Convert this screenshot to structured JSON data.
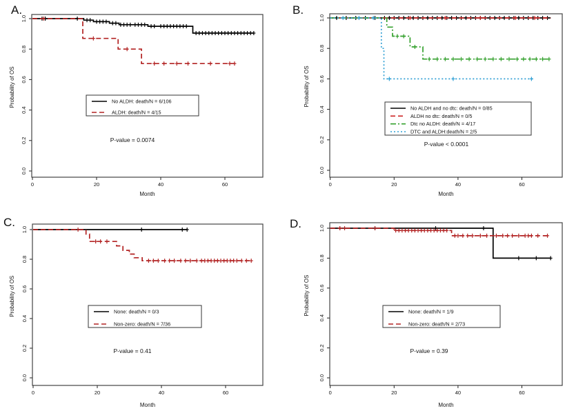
{
  "figure": {
    "description": "Kaplan-Meier overall survival curves, four panels",
    "panel_labels": [
      "A.",
      "B.",
      "C.",
      "D."
    ]
  },
  "chart_data": [
    {
      "type": "line",
      "panel_label": "A.",
      "xlabel": "Month",
      "ylabel": "Probability of OS",
      "xlim": [
        0,
        72
      ],
      "ylim": [
        0,
        1
      ],
      "x_ticks": [
        0,
        20,
        40,
        60
      ],
      "x_tick_labels": [
        "0",
        "20",
        "40",
        "60"
      ],
      "y_ticks": [
        0.0,
        0.2,
        0.4,
        0.6,
        0.8,
        1.0
      ],
      "y_tick_labels": [
        "0.0",
        "0.2",
        "0.4",
        "0.6",
        "0.8",
        "1.0"
      ],
      "p_value": "P-value = 0.0074",
      "legend_position": "center",
      "series": [
        {
          "name": "No ALDH: death/N = 6/106",
          "color": "#000000",
          "dash": "solid",
          "steps": [
            [
              0,
              1.0
            ],
            [
              16,
              0.99
            ],
            [
              19,
              0.98
            ],
            [
              24,
              0.97
            ],
            [
              27,
              0.96
            ],
            [
              36,
              0.95
            ],
            [
              50,
              0.905
            ],
            [
              69,
              0.905
            ]
          ],
          "censor_months": [
            3,
            4,
            14,
            17,
            18,
            20,
            21,
            22,
            23,
            25,
            26,
            27.5,
            28.5,
            29.5,
            30.5,
            32,
            33,
            34,
            35,
            37,
            38,
            40,
            41,
            42,
            43,
            44,
            45,
            46,
            47,
            48,
            51,
            52,
            53,
            54,
            55,
            56,
            57,
            58,
            59,
            60,
            61,
            62,
            63,
            64,
            65,
            66,
            67,
            68,
            69
          ]
        },
        {
          "name": "ALDH: death/N = 4/15",
          "color": "#b22222",
          "dash": "dash",
          "steps": [
            [
              0,
              1.0
            ],
            [
              15.7,
              0.87
            ],
            [
              26.7,
              0.8
            ],
            [
              34,
              0.705
            ],
            [
              63,
              0.705
            ]
          ],
          "censor_months": [
            3.5,
            19,
            29.5,
            38,
            41,
            45,
            48.5,
            55.5,
            61.5,
            63
          ]
        }
      ]
    },
    {
      "type": "line",
      "panel_label": "B.",
      "xlabel": "Month",
      "ylabel": "Probability of OS",
      "xlim": [
        0,
        72
      ],
      "ylim": [
        0,
        1
      ],
      "x_ticks": [
        0,
        20,
        40,
        60
      ],
      "x_tick_labels": [
        "0",
        "20",
        "40",
        "60"
      ],
      "y_ticks": [
        0.0,
        0.2,
        0.4,
        0.6,
        0.8,
        1.0
      ],
      "y_tick_labels": [
        "0.0",
        "0.2",
        "0.4",
        "0.6",
        "0.8",
        "1.0"
      ],
      "p_value": "P-value < 0.0001",
      "legend_position": "center",
      "series": [
        {
          "name": "No ALDH and no dtc: death/N = 0/85",
          "color": "#000000",
          "dash": "solid",
          "steps": [
            [
              0,
              1.0
            ],
            [
              69,
              1.0
            ]
          ],
          "censor_months": [
            2,
            5,
            8,
            11,
            14,
            17,
            18.5,
            20,
            21.5,
            23,
            24.5,
            26,
            27.5,
            29,
            30.5,
            32,
            33.5,
            35,
            36.5,
            38,
            39.5,
            41,
            42.5,
            44,
            45.5,
            47,
            48.5,
            50,
            51.5,
            53,
            54.5,
            56,
            57.5,
            59,
            60.5,
            62,
            63.5,
            65,
            66.5,
            68
          ]
        },
        {
          "name": "ALDH no dtc: death/N = 0/5",
          "color": "#cc2222",
          "dash": "dash",
          "steps": [
            [
              0,
              1.0
            ],
            [
              69,
              1.0
            ]
          ],
          "censor_months": [
            25,
            36,
            47,
            58,
            64
          ]
        },
        {
          "name": "Dtc no ALDH: death/N = 4/17",
          "color": "#33a02c",
          "dash": "dashdot",
          "steps": [
            [
              0,
              1.0
            ],
            [
              17.7,
              0.94
            ],
            [
              19.5,
              0.88
            ],
            [
              25,
              0.81
            ],
            [
              29,
              0.73
            ],
            [
              69,
              0.73
            ]
          ],
          "censor_months": [
            21,
            23,
            26.5,
            31,
            33.5,
            36,
            38.5,
            41,
            43.5,
            46,
            48.5,
            51,
            53.5,
            56,
            58.5,
            60.5,
            62.5,
            64.5,
            66.5,
            68.5
          ]
        },
        {
          "name": "DTC and ALDH:death/N = 2/5",
          "color": "#2f9fd4",
          "dash": "dot",
          "steps": [
            [
              0,
              1.0
            ],
            [
              16,
              0.8
            ],
            [
              16.8,
              0.6
            ],
            [
              63.5,
              0.6
            ]
          ],
          "censor_months": [
            4,
            9,
            13.5,
            18.5,
            38.5,
            63
          ]
        }
      ]
    },
    {
      "type": "line",
      "panel_label": "C.",
      "xlabel": "Month",
      "ylabel": "Probability of OS",
      "xlim": [
        0,
        72
      ],
      "ylim": [
        0,
        1
      ],
      "x_ticks": [
        0,
        20,
        40,
        60
      ],
      "x_tick_labels": [
        "0",
        "20",
        "40",
        "60"
      ],
      "y_ticks": [
        0.0,
        0.2,
        0.4,
        0.6,
        0.8,
        1.0
      ],
      "y_tick_labels": [
        "0.0",
        "0.2",
        "0.4",
        "0.6",
        "0.8",
        "1.0"
      ],
      "p_value": "P-value = 0.41",
      "legend_position": "center",
      "series": [
        {
          "name": "None: death/N = 0/3",
          "color": "#000000",
          "dash": "solid",
          "steps": [
            [
              0,
              1.0
            ],
            [
              48,
              1.0
            ]
          ],
          "censor_months": [
            33.8,
            46.5,
            48
          ]
        },
        {
          "name": "Non-zero: death/N = 7/36",
          "color": "#b22222",
          "dash": "dash",
          "steps": [
            [
              0,
              1.0
            ],
            [
              16.5,
              0.97
            ],
            [
              17.6,
              0.92
            ],
            [
              26,
              0.89
            ],
            [
              28,
              0.86
            ],
            [
              30,
              0.835
            ],
            [
              31.5,
              0.81
            ],
            [
              34,
              0.79
            ],
            [
              68,
              0.79
            ]
          ],
          "censor_months": [
            14,
            19.5,
            21,
            23,
            36,
            37.5,
            39,
            41,
            42.5,
            44,
            46,
            47.5,
            49,
            51,
            52.5,
            53.5,
            54.5,
            55.5,
            56.5,
            57.5,
            58.5,
            59.5,
            60.5,
            61.5,
            62.5,
            63.5,
            65,
            66.5,
            68
          ]
        }
      ]
    },
    {
      "type": "line",
      "panel_label": "D.",
      "xlabel": "Month",
      "ylabel": "Probability of OS",
      "xlim": [
        0,
        72
      ],
      "ylim": [
        0,
        1
      ],
      "x_ticks": [
        0,
        20,
        40,
        60
      ],
      "x_tick_labels": [
        "0",
        "20",
        "40",
        "60"
      ],
      "y_ticks": [
        0.0,
        0.2,
        0.4,
        0.6,
        0.8,
        1.0
      ],
      "y_tick_labels": [
        "0.0",
        "0.2",
        "0.4",
        "0.6",
        "0.8",
        "1.0"
      ],
      "p_value": "P-value = 0.39",
      "legend_position": "center",
      "series": [
        {
          "name": "None: death/N = 1/9",
          "color": "#000000",
          "dash": "solid",
          "steps": [
            [
              0,
              1.0
            ],
            [
              51,
              0.8
            ],
            [
              69,
              0.8
            ]
          ],
          "censor_months": [
            3,
            14,
            33,
            48,
            59,
            64.5,
            69
          ]
        },
        {
          "name": "Non-zero: death/N = 2/73",
          "color": "#b22222",
          "dash": "dash",
          "steps": [
            [
              0,
              1.0
            ],
            [
              20,
              0.985
            ],
            [
              38,
              0.95
            ],
            [
              68,
              0.95
            ]
          ],
          "censor_months": [
            3,
            4.5,
            14,
            20.5,
            21.5,
            22.5,
            23.5,
            24.5,
            25.5,
            26.5,
            27.5,
            28.5,
            29.5,
            30.5,
            31.5,
            32.5,
            33.5,
            34.5,
            35.5,
            36.5,
            39,
            40,
            41.5,
            43,
            44.5,
            47,
            49,
            52,
            54,
            55.5,
            57,
            59,
            61,
            62,
            63,
            65,
            68
          ]
        }
      ]
    }
  ]
}
